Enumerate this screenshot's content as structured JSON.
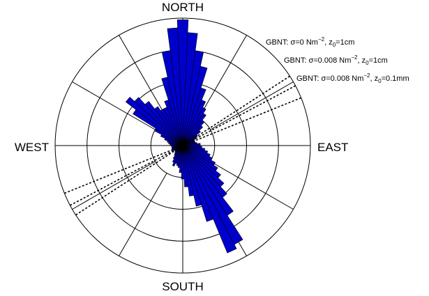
{
  "chart_data": {
    "type": "polar-histogram",
    "directions": {
      "north": "NORTH",
      "south": "SOUTH",
      "east": "EAST",
      "west": "WEST"
    },
    "bin_width_deg": 5,
    "radial_rings": 4,
    "radial_max": 4,
    "grid": true,
    "bins": [
      {
        "deg": 0,
        "r": 3.95
      },
      {
        "deg": 5,
        "r": 3.55
      },
      {
        "deg": 10,
        "r": 3.0
      },
      {
        "deg": 15,
        "r": 2.55
      },
      {
        "deg": 20,
        "r": 1.9
      },
      {
        "deg": 25,
        "r": 1.55
      },
      {
        "deg": 30,
        "r": 1.35
      },
      {
        "deg": 35,
        "r": 1.2
      },
      {
        "deg": 40,
        "r": 1.0
      },
      {
        "deg": 45,
        "r": 0.85
      },
      {
        "deg": 50,
        "r": 0.7
      },
      {
        "deg": 55,
        "r": 0.55
      },
      {
        "deg": 60,
        "r": 0.45
      },
      {
        "deg": 65,
        "r": 0.4
      },
      {
        "deg": 70,
        "r": 0.4
      },
      {
        "deg": 75,
        "r": 0.4
      },
      {
        "deg": 80,
        "r": 0.45
      },
      {
        "deg": 85,
        "r": 0.55
      },
      {
        "deg": 90,
        "r": 0.55
      },
      {
        "deg": 95,
        "r": 0.6
      },
      {
        "deg": 100,
        "r": 0.7
      },
      {
        "deg": 105,
        "r": 0.8
      },
      {
        "deg": 110,
        "r": 0.9
      },
      {
        "deg": 115,
        "r": 1.0
      },
      {
        "deg": 120,
        "r": 1.15
      },
      {
        "deg": 125,
        "r": 1.3
      },
      {
        "deg": 130,
        "r": 1.5
      },
      {
        "deg": 135,
        "r": 1.75
      },
      {
        "deg": 140,
        "r": 2.05
      },
      {
        "deg": 145,
        "r": 2.6
      },
      {
        "deg": 150,
        "r": 3.5
      },
      {
        "deg": 155,
        "r": 3.65
      },
      {
        "deg": 160,
        "r": 2.5
      },
      {
        "deg": 165,
        "r": 1.95
      },
      {
        "deg": 170,
        "r": 1.6
      },
      {
        "deg": 175,
        "r": 1.3
      },
      {
        "deg": 180,
        "r": 1.05
      },
      {
        "deg": 185,
        "r": 0.85
      },
      {
        "deg": 190,
        "r": 0.7
      },
      {
        "deg": 195,
        "r": 0.65
      },
      {
        "deg": 200,
        "r": 0.6
      },
      {
        "deg": 205,
        "r": 0.7
      },
      {
        "deg": 210,
        "r": 0.6
      },
      {
        "deg": 215,
        "r": 0.5
      },
      {
        "deg": 220,
        "r": 0.4
      },
      {
        "deg": 225,
        "r": 0.35
      },
      {
        "deg": 230,
        "r": 0.3
      },
      {
        "deg": 235,
        "r": 0.3
      },
      {
        "deg": 240,
        "r": 0.3
      },
      {
        "deg": 245,
        "r": 0.35
      },
      {
        "deg": 250,
        "r": 0.35
      },
      {
        "deg": 255,
        "r": 0.35
      },
      {
        "deg": 260,
        "r": 0.35
      },
      {
        "deg": 265,
        "r": 0.35
      },
      {
        "deg": 270,
        "r": 0.35
      },
      {
        "deg": 275,
        "r": 0.4
      },
      {
        "deg": 280,
        "r": 0.45
      },
      {
        "deg": 285,
        "r": 0.5
      },
      {
        "deg": 290,
        "r": 0.6
      },
      {
        "deg": 295,
        "r": 0.75
      },
      {
        "deg": 300,
        "r": 1.0
      },
      {
        "deg": 305,
        "r": 1.85
      },
      {
        "deg": 310,
        "r": 2.25
      },
      {
        "deg": 315,
        "r": 2.05
      },
      {
        "deg": 320,
        "r": 1.75
      },
      {
        "deg": 325,
        "r": 1.45
      },
      {
        "deg": 330,
        "r": 1.3
      },
      {
        "deg": 335,
        "r": 1.3
      },
      {
        "deg": 340,
        "r": 1.5
      },
      {
        "deg": 345,
        "r": 2.2
      },
      {
        "deg": 350,
        "r": 3.0
      },
      {
        "deg": 355,
        "r": 3.7
      }
    ],
    "bar_color": "#0000cc",
    "bar_edge_color": "#000000",
    "reference_lines": [
      {
        "direction_deg": 57,
        "label": "GBNT: σ=0 Nm",
        "label_sup": "−2",
        "label_mid": ", z",
        "label_sub": "0",
        "label_end": "=1cm"
      },
      {
        "direction_deg": 62,
        "label": "GBNT: σ=0.008 Nm",
        "label_sup": "−2",
        "label_mid": ", z",
        "label_sub": "0",
        "label_end": "=1cm"
      },
      {
        "direction_deg": 68,
        "label": "GBNT: σ=0.008 Nm",
        "label_sup": "−2",
        "label_mid": ", z",
        "label_sub": "0",
        "label_end": "=0.1mm"
      }
    ]
  }
}
